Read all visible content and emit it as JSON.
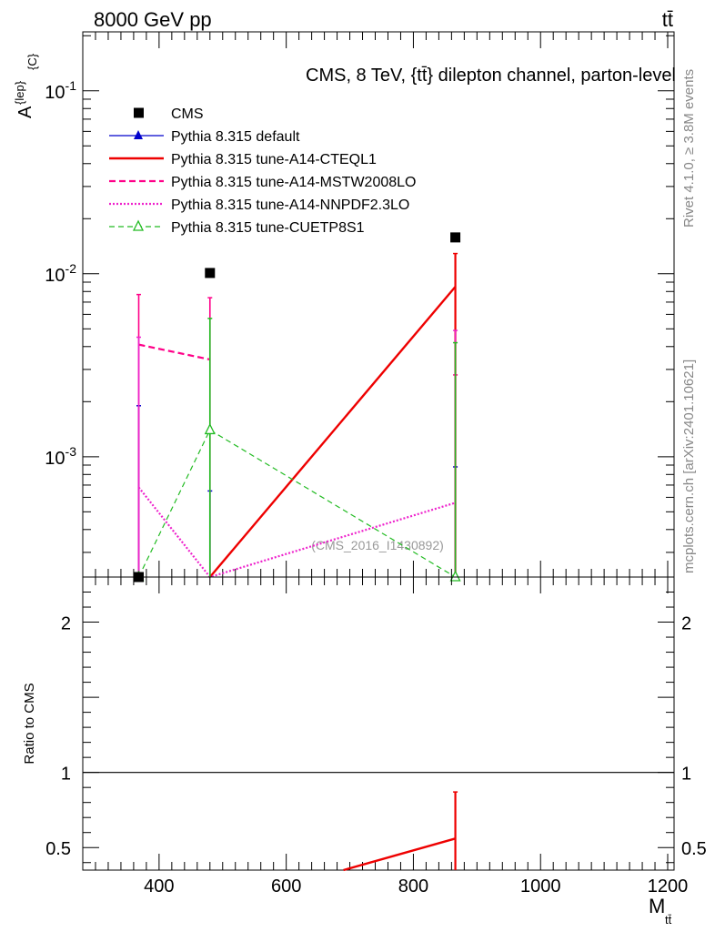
{
  "header": {
    "left": "8000 GeV pp",
    "right": "tt̄"
  },
  "side_labels": {
    "rivet": "Rivet 4.1.0, ≥ 3.8M events",
    "mcplots": "mcplots.cern.ch [arXiv:2401.10621]"
  },
  "chart_data": [
    {
      "type": "scatter",
      "title": "CMS, 8 TeV, {tt̄} dilepton channel, parton-level",
      "ylabel": "A^{lep}_{C}",
      "ylabel_main": "A",
      "ylabel_sup": "{lep}",
      "ylabel_sub": "{C}",
      "y_scale": "log",
      "xlim": [
        280,
        1210
      ],
      "ylim": [
        0.00022,
        0.21
      ],
      "ytick_labels": [
        "10^-3",
        "10^-2",
        "10^-1"
      ],
      "ytick_values": [
        0.001,
        0.01,
        0.1
      ],
      "watermark": "(CMS_2016_I1430892)",
      "legend_position": "top-left",
      "x": [
        368,
        480,
        866
      ],
      "series": [
        {
          "name": "CMS",
          "style": "square",
          "color": "#000000",
          "values": [
            0.00022,
            0.0101,
            0.0158
          ]
        },
        {
          "name": "Pythia 8.315 default",
          "style": "line-triangle",
          "color": "#0000cc",
          "values": [
            null,
            null,
            null
          ],
          "err_hi": [
            0.0019,
            0.00065,
            0.00088
          ]
        },
        {
          "name": "Pythia 8.315 tune-A14-CTEQL1",
          "style": "solid",
          "color": "#ee0000",
          "values": [
            null,
            0.00022,
            0.0085
          ],
          "err_hi": [
            null,
            null,
            0.0129
          ]
        },
        {
          "name": "Pythia 8.315 tune-A14-MSTW2008LO",
          "style": "dashed",
          "color": "#ff0088",
          "values": [
            0.0041,
            0.0034,
            null
          ],
          "err_hi": [
            0.0077,
            0.0074,
            0.0028
          ]
        },
        {
          "name": "Pythia 8.315 tune-A14-NNPDF2.3LO",
          "style": "dotted",
          "color": "#ee22cc",
          "values": [
            0.00068,
            0.00022,
            0.00056
          ],
          "err_hi": [
            0.0045,
            null,
            0.0049
          ]
        },
        {
          "name": "Pythia 8.315 tune-CUETP8S1",
          "style": "dashed-triangle",
          "color": "#22bb22",
          "values": [
            0.00022,
            0.0014,
            0.00022
          ],
          "err_hi": [
            null,
            0.0057,
            0.0042
          ]
        }
      ]
    },
    {
      "type": "line",
      "ylabel": "Ratio to CMS",
      "xlabel": "M_{tt̄}",
      "xlabel_main": "M",
      "xlabel_sub": "tt̄",
      "xlim": [
        280,
        1210
      ],
      "ylim": [
        0.35,
        2.3
      ],
      "xtick_labels": [
        "400",
        "600",
        "800",
        "1000",
        "1200"
      ],
      "xtick_values": [
        400,
        600,
        800,
        1000,
        1200
      ],
      "ytick_labels": [
        "0.5",
        "1",
        "2"
      ],
      "ytick_values": [
        0.5,
        1,
        2
      ],
      "series": [
        {
          "name": "Pythia 8.315 tune-A14-CTEQL1",
          "color": "#ee0000",
          "x": [
            690,
            866
          ],
          "values": [
            0.35,
            0.56
          ],
          "err_hi": [
            null,
            0.87
          ]
        }
      ]
    }
  ]
}
